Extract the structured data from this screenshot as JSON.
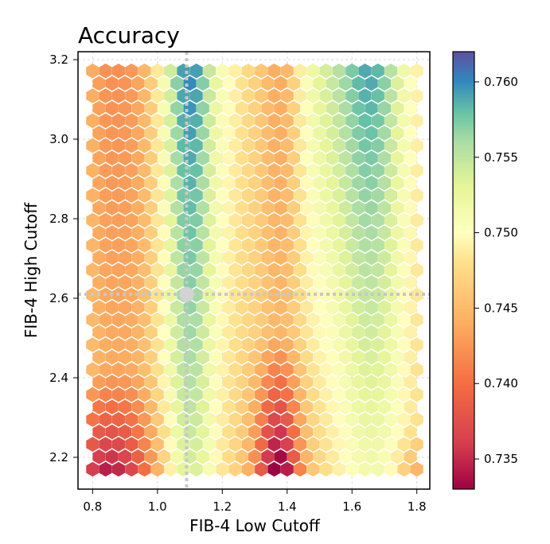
{
  "chart_data": {
    "type": "heatmap",
    "title": "Accuracy",
    "xlabel": "FIB-4 Low Cutoff",
    "ylabel": "FIB-4 High Cutoff",
    "xlim": [
      0.755,
      1.84
    ],
    "ylim": [
      2.12,
      3.22
    ],
    "x_ticks": [
      0.8,
      1.0,
      1.2,
      1.4,
      1.6,
      1.8
    ],
    "x_tick_labels": [
      "0.8",
      "1.0",
      "1.2",
      "1.4",
      "1.6",
      "1.8"
    ],
    "y_ticks": [
      2.2,
      2.4,
      2.6,
      2.8,
      3.0,
      3.2
    ],
    "y_tick_labels": [
      "2.2",
      "2.4",
      "2.6",
      "2.8",
      "3.0",
      "3.2"
    ],
    "grid": true,
    "colorbar": {
      "min": 0.733,
      "max": 0.762,
      "ticks": [
        0.735,
        0.74,
        0.745,
        0.75,
        0.755,
        0.76
      ],
      "tick_labels": [
        "0.735",
        "0.740",
        "0.745",
        "0.750",
        "0.755",
        "0.760"
      ]
    },
    "highlight": {
      "x": 1.09,
      "y": 2.61,
      "crosshair": true
    },
    "hex_grid": {
      "x_start": 0.8,
      "x_end": 1.8,
      "x_step": 0.04,
      "y_start": 2.17,
      "y_end": 3.17,
      "y_step": 0.0313
    },
    "color_stops": [
      {
        "value": 0.733,
        "color": "#9e0142"
      },
      {
        "value": 0.736,
        "color": "#d53e4f"
      },
      {
        "value": 0.74,
        "color": "#f46d43"
      },
      {
        "value": 0.744,
        "color": "#fdae61"
      },
      {
        "value": 0.748,
        "color": "#fee08b"
      },
      {
        "value": 0.75,
        "color": "#ffffbf"
      },
      {
        "value": 0.753,
        "color": "#e6f598"
      },
      {
        "value": 0.756,
        "color": "#abdda4"
      },
      {
        "value": 0.758,
        "color": "#66c2a5"
      },
      {
        "value": 0.76,
        "color": "#3288bd"
      },
      {
        "value": 0.762,
        "color": "#5e4fa2"
      }
    ]
  }
}
